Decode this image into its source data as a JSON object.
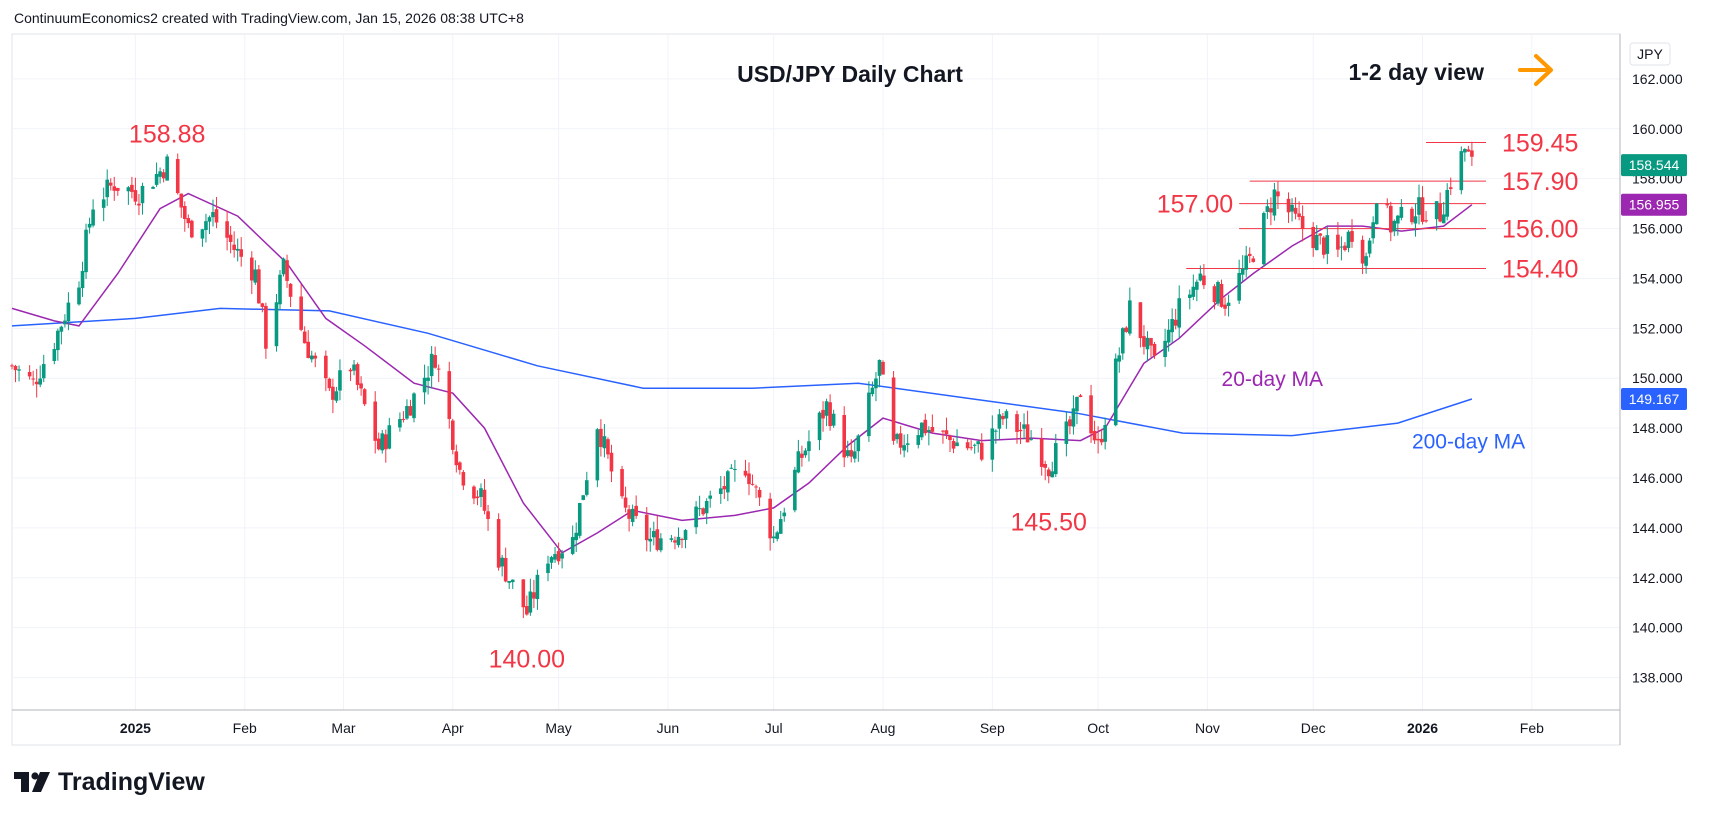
{
  "header": {
    "credit": "ContinuumEconomics2 created with TradingView.com, Jan 15, 2026 08:38 UTC+8"
  },
  "brand": {
    "name": "TradingView"
  },
  "colors": {
    "up": "#089981",
    "down": "#f23645",
    "ma20": "#9c27b0",
    "ma200": "#2962ff",
    "level": "#f23645",
    "arrow": "#ff9800",
    "text": "#131722"
  },
  "chart_data": {
    "type": "candlestick",
    "title": "USD/JPY Daily Chart",
    "view_label": "1-2 day view",
    "view_arrow": "right-arrow-icon",
    "currency": "JPY",
    "ylim": [
      136.7,
      163.8
    ],
    "y_ticks": [
      "162.000",
      "160.000",
      "158.000",
      "156.000",
      "154.000",
      "152.000",
      "150.000",
      "148.000",
      "146.000",
      "144.000",
      "142.000",
      "140.000",
      "138.000"
    ],
    "x_range": [
      "2024-11-27",
      "2026-02-26"
    ],
    "x_ticks": [
      {
        "label": "2025",
        "date": "2025-01-01",
        "bold": true
      },
      {
        "label": "Feb",
        "date": "2025-02-01"
      },
      {
        "label": "Mar",
        "date": "2025-03-01"
      },
      {
        "label": "Apr",
        "date": "2025-04-01"
      },
      {
        "label": "May",
        "date": "2025-05-01"
      },
      {
        "label": "Jun",
        "date": "2025-06-01"
      },
      {
        "label": "Jul",
        "date": "2025-07-01"
      },
      {
        "label": "Aug",
        "date": "2025-08-01"
      },
      {
        "label": "Sep",
        "date": "2025-09-01"
      },
      {
        "label": "Oct",
        "date": "2025-10-01"
      },
      {
        "label": "Nov",
        "date": "2025-11-01"
      },
      {
        "label": "Dec",
        "date": "2025-12-01"
      },
      {
        "label": "2026",
        "date": "2026-01-01",
        "bold": true
      },
      {
        "label": "Feb",
        "date": "2026-02-01"
      }
    ],
    "price_path": [
      {
        "date": "2024-11-27",
        "close": 150.5
      },
      {
        "date": "2024-12-03",
        "close": 149.8
      },
      {
        "date": "2024-12-09",
        "close": 151.5
      },
      {
        "date": "2024-12-16",
        "close": 154.0
      },
      {
        "date": "2024-12-20",
        "close": 157.0
      },
      {
        "date": "2024-12-26",
        "close": 157.8
      },
      {
        "date": "2025-01-02",
        "close": 157.4
      },
      {
        "date": "2025-01-10",
        "close": 158.6
      },
      {
        "date": "2025-01-16",
        "close": 156.0
      },
      {
        "date": "2025-01-23",
        "close": 156.5
      },
      {
        "date": "2025-01-29",
        "close": 155.2
      },
      {
        "date": "2025-02-04",
        "close": 154.2
      },
      {
        "date": "2025-02-07",
        "close": 151.5
      },
      {
        "date": "2025-02-12",
        "close": 154.4
      },
      {
        "date": "2025-02-18",
        "close": 151.5
      },
      {
        "date": "2025-02-25",
        "close": 149.3
      },
      {
        "date": "2025-03-03",
        "close": 150.5
      },
      {
        "date": "2025-03-11",
        "close": 147.2
      },
      {
        "date": "2025-03-20",
        "close": 149.0
      },
      {
        "date": "2025-03-27",
        "close": 150.9
      },
      {
        "date": "2025-04-03",
        "close": 146.3
      },
      {
        "date": "2025-04-09",
        "close": 145.2
      },
      {
        "date": "2025-04-14",
        "close": 142.8
      },
      {
        "date": "2025-04-22",
        "close": 140.6
      },
      {
        "date": "2025-04-28",
        "close": 142.9
      },
      {
        "date": "2025-05-05",
        "close": 143.5
      },
      {
        "date": "2025-05-12",
        "close": 148.2
      },
      {
        "date": "2025-05-19",
        "close": 144.8
      },
      {
        "date": "2025-05-27",
        "close": 143.5
      },
      {
        "date": "2025-06-04",
        "close": 143.8
      },
      {
        "date": "2025-06-11",
        "close": 144.8
      },
      {
        "date": "2025-06-23",
        "close": 146.5
      },
      {
        "date": "2025-07-01",
        "close": 143.6
      },
      {
        "date": "2025-07-08",
        "close": 146.6
      },
      {
        "date": "2025-07-16",
        "close": 148.9
      },
      {
        "date": "2025-07-23",
        "close": 146.5
      },
      {
        "date": "2025-07-31",
        "close": 150.5
      },
      {
        "date": "2025-08-04",
        "close": 147.2
      },
      {
        "date": "2025-08-12",
        "close": 148.1
      },
      {
        "date": "2025-08-20",
        "close": 147.5
      },
      {
        "date": "2025-08-29",
        "close": 147.1
      },
      {
        "date": "2025-09-04",
        "close": 148.4
      },
      {
        "date": "2025-09-12",
        "close": 147.6
      },
      {
        "date": "2025-09-17",
        "close": 146.5
      },
      {
        "date": "2025-09-24",
        "close": 148.3
      },
      {
        "date": "2025-09-26",
        "close": 149.5
      },
      {
        "date": "2025-10-01",
        "close": 147.2
      },
      {
        "date": "2025-10-06",
        "close": 150.4
      },
      {
        "date": "2025-10-10",
        "close": 152.8
      },
      {
        "date": "2025-10-17",
        "close": 150.5
      },
      {
        "date": "2025-10-24",
        "close": 152.8
      },
      {
        "date": "2025-10-30",
        "close": 154.1
      },
      {
        "date": "2025-11-06",
        "close": 153.1
      },
      {
        "date": "2025-11-13",
        "close": 154.7
      },
      {
        "date": "2025-11-20",
        "close": 157.4
      },
      {
        "date": "2025-11-26",
        "close": 156.3
      },
      {
        "date": "2025-12-02",
        "close": 155.5
      },
      {
        "date": "2025-12-08",
        "close": 155.0
      },
      {
        "date": "2025-12-12",
        "close": 155.9
      },
      {
        "date": "2025-12-16",
        "close": 154.8
      },
      {
        "date": "2025-12-19",
        "close": 157.5
      },
      {
        "date": "2025-12-23",
        "close": 156.1
      },
      {
        "date": "2025-12-30",
        "close": 156.8
      },
      {
        "date": "2026-01-06",
        "close": 156.6
      },
      {
        "date": "2026-01-09",
        "close": 157.9
      },
      {
        "date": "2026-01-13",
        "close": 159.2
      },
      {
        "date": "2026-01-15",
        "close": 158.544
      }
    ],
    "ma20": [
      {
        "date": "2024-11-27",
        "v": 152.8
      },
      {
        "date": "2024-12-09",
        "v": 152.3
      },
      {
        "date": "2024-12-16",
        "v": 152.1
      },
      {
        "date": "2024-12-27",
        "v": 154.2
      },
      {
        "date": "2025-01-08",
        "v": 156.8
      },
      {
        "date": "2025-01-16",
        "v": 157.4
      },
      {
        "date": "2025-01-30",
        "v": 156.5
      },
      {
        "date": "2025-02-13",
        "v": 154.6
      },
      {
        "date": "2025-02-24",
        "v": 152.4
      },
      {
        "date": "2025-03-07",
        "v": 151.3
      },
      {
        "date": "2025-03-21",
        "v": 149.8
      },
      {
        "date": "2025-04-01",
        "v": 149.4
      },
      {
        "date": "2025-04-10",
        "v": 148.0
      },
      {
        "date": "2025-04-21",
        "v": 145.0
      },
      {
        "date": "2025-05-02",
        "v": 143.0
      },
      {
        "date": "2025-05-12",
        "v": 143.8
      },
      {
        "date": "2025-05-22",
        "v": 144.7
      },
      {
        "date": "2025-06-05",
        "v": 144.3
      },
      {
        "date": "2025-06-20",
        "v": 144.5
      },
      {
        "date": "2025-07-01",
        "v": 144.8
      },
      {
        "date": "2025-07-11",
        "v": 145.8
      },
      {
        "date": "2025-07-22",
        "v": 147.3
      },
      {
        "date": "2025-08-01",
        "v": 148.4
      },
      {
        "date": "2025-08-15",
        "v": 147.8
      },
      {
        "date": "2025-08-29",
        "v": 147.5
      },
      {
        "date": "2025-09-12",
        "v": 147.6
      },
      {
        "date": "2025-09-26",
        "v": 147.5
      },
      {
        "date": "2025-10-03",
        "v": 148.0
      },
      {
        "date": "2025-10-14",
        "v": 150.6
      },
      {
        "date": "2025-10-24",
        "v": 151.6
      },
      {
        "date": "2025-11-05",
        "v": 153.2
      },
      {
        "date": "2025-11-14",
        "v": 154.2
      },
      {
        "date": "2025-11-25",
        "v": 155.3
      },
      {
        "date": "2025-12-05",
        "v": 156.1
      },
      {
        "date": "2025-12-15",
        "v": 156.1
      },
      {
        "date": "2025-12-26",
        "v": 155.9
      },
      {
        "date": "2026-01-07",
        "v": 156.1
      },
      {
        "date": "2026-01-15",
        "v": 156.955
      }
    ],
    "ma200": [
      {
        "date": "2024-11-27",
        "v": 152.1
      },
      {
        "date": "2025-01-01",
        "v": 152.4
      },
      {
        "date": "2025-01-25",
        "v": 152.8
      },
      {
        "date": "2025-02-25",
        "v": 152.7
      },
      {
        "date": "2025-03-25",
        "v": 151.8
      },
      {
        "date": "2025-04-25",
        "v": 150.5
      },
      {
        "date": "2025-05-25",
        "v": 149.6
      },
      {
        "date": "2025-06-25",
        "v": 149.6
      },
      {
        "date": "2025-07-25",
        "v": 149.8
      },
      {
        "date": "2025-08-25",
        "v": 149.2
      },
      {
        "date": "2025-09-25",
        "v": 148.6
      },
      {
        "date": "2025-10-25",
        "v": 147.8
      },
      {
        "date": "2025-11-25",
        "v": 147.7
      },
      {
        "date": "2025-12-25",
        "v": 148.2
      },
      {
        "date": "2026-01-15",
        "v": 149.167
      }
    ],
    "levels": [
      {
        "label": "159.45",
        "value": 159.45,
        "from": "2026-01-02",
        "to": "2026-01-19",
        "side": "right"
      },
      {
        "label": "157.90",
        "value": 157.9,
        "from": "2025-11-13",
        "to": "2026-01-19",
        "side": "right"
      },
      {
        "label": "157.00",
        "value": 157.0,
        "from": "2025-11-10",
        "to": "2026-01-19",
        "side": "left"
      },
      {
        "label": "156.00",
        "value": 156.0,
        "from": "2025-11-10",
        "to": "2026-01-19",
        "side": "right"
      },
      {
        "label": "154.40",
        "value": 154.4,
        "from": "2025-10-26",
        "to": "2026-01-19",
        "side": "right"
      }
    ],
    "point_labels": [
      {
        "label": "158.88",
        "date": "2025-01-10",
        "value": 158.88,
        "pos": "above"
      },
      {
        "label": "140.00",
        "date": "2025-04-22",
        "value": 140.0,
        "pos": "below"
      },
      {
        "label": "145.50",
        "date": "2025-09-17",
        "value": 145.5,
        "pos": "below"
      }
    ],
    "ma_labels": [
      {
        "label": "20-day MA",
        "color_key": "ma20",
        "date": "2025-11-05",
        "value": 150.0
      },
      {
        "label": "200-day MA",
        "color_key": "ma200",
        "date": "2025-12-29",
        "value": 147.5
      }
    ],
    "last_price_tags": [
      {
        "label": "158.544",
        "value": 158.544,
        "color": "#089981"
      },
      {
        "label": "156.955",
        "value": 156.955,
        "color": "#9c27b0"
      },
      {
        "label": "149.167",
        "value": 149.167,
        "color": "#2962ff"
      }
    ],
    "grid": true
  }
}
